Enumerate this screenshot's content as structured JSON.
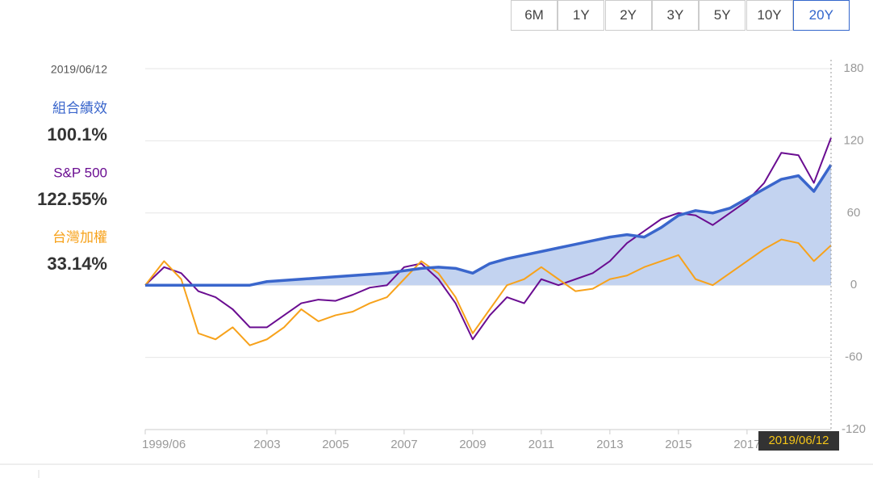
{
  "range_buttons": [
    "6M",
    "1Y",
    "2Y",
    "3Y",
    "5Y",
    "10Y",
    "20Y"
  ],
  "selected_range": "20Y",
  "chart_data": {
    "type": "line",
    "date": "2019/06/12",
    "x": [
      1999.45,
      2000,
      2000.5,
      2001,
      2001.5,
      2002,
      2002.5,
      2003,
      2003.5,
      2004,
      2004.5,
      2005,
      2005.5,
      2006,
      2006.5,
      2007,
      2007.5,
      2008,
      2008.5,
      2009,
      2009.5,
      2010,
      2010.5,
      2011,
      2011.5,
      2012,
      2012.5,
      2013,
      2013.5,
      2014,
      2014.5,
      2015,
      2015.5,
      2016,
      2016.5,
      2017,
      2017.5,
      2018,
      2018.5,
      2018.95,
      2019.45
    ],
    "series": [
      {
        "name": "組合績效",
        "color": "#3a66cc",
        "area": true,
        "latest": "100.1%",
        "values": [
          0,
          0,
          0,
          0,
          0,
          0,
          0,
          3,
          4,
          5,
          6,
          7,
          8,
          9,
          10,
          12,
          14,
          15,
          14,
          10,
          18,
          22,
          25,
          28,
          31,
          34,
          37,
          40,
          42,
          40,
          48,
          58,
          62,
          60,
          64,
          72,
          80,
          88,
          91,
          78,
          100.1
        ]
      },
      {
        "name": "S&P 500",
        "color": "#6a0d91",
        "latest": "122.55%",
        "values": [
          0,
          15,
          10,
          -5,
          -10,
          -20,
          -35,
          -35,
          -25,
          -15,
          -12,
          -13,
          -8,
          -2,
          0,
          15,
          18,
          5,
          -15,
          -45,
          -25,
          -10,
          -15,
          5,
          0,
          5,
          10,
          20,
          35,
          45,
          55,
          60,
          58,
          50,
          60,
          70,
          85,
          110,
          108,
          85,
          122.55
        ]
      },
      {
        "name": "台灣加權",
        "color": "#f7a21b",
        "latest": "33.14%",
        "values": [
          0,
          20,
          5,
          -40,
          -45,
          -35,
          -50,
          -45,
          -35,
          -20,
          -30,
          -25,
          -22,
          -15,
          -10,
          5,
          20,
          10,
          -10,
          -40,
          -20,
          0,
          5,
          15,
          5,
          -5,
          -3,
          5,
          8,
          15,
          20,
          25,
          5,
          0,
          10,
          20,
          30,
          38,
          35,
          20,
          33.14
        ]
      }
    ],
    "xlim": [
      1999.45,
      2019.45
    ],
    "xticks": [
      {
        "value": 1999.45,
        "label": "1999/06"
      },
      2003,
      2005,
      2007,
      2009,
      2011,
      2013,
      2015,
      2017
    ],
    "ylim": [
      -120,
      180
    ],
    "yticks": [
      180,
      120,
      60,
      0,
      -60,
      -120
    ],
    "grid": true
  }
}
